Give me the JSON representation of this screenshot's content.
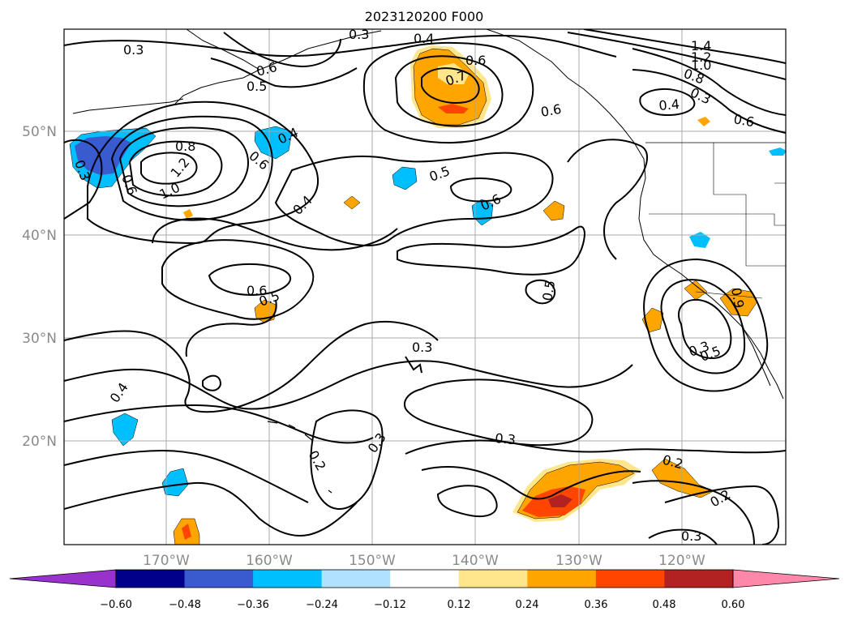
{
  "title": "2023120200 F000",
  "map": {
    "lat_labels": [
      "50°N",
      "40°N",
      "30°N",
      "20°N"
    ],
    "lon_labels": [
      "170°W",
      "160°W",
      "150°W",
      "140°W",
      "130°W",
      "120°W"
    ],
    "extent": {
      "lon_min": -179,
      "lon_max": -109,
      "lat_min": 10,
      "lat_max": 59
    }
  },
  "contour_labels": [
    "0.3",
    "0.3",
    "0.4",
    "0.6",
    "0.7",
    "1.4",
    "1.2",
    "1.0",
    "0.8",
    "0.3",
    "0.6",
    "0.5",
    "0.6",
    "0.4",
    "0.6",
    "0.3",
    "0.8",
    "0.6",
    "1.2",
    "1.0",
    "0.4",
    "0.6",
    "0.5",
    "0.6",
    "0.4",
    "0.6",
    "0.5",
    "0.5",
    "0.3",
    "0.3",
    "0.3",
    "0.4",
    "0.2",
    "0.3",
    "0.2",
    "0.2",
    "0.3",
    "0.5",
    "0.9"
  ],
  "colorbar": {
    "ticks": [
      "−0.60",
      "−0.48",
      "−0.36",
      "−0.24",
      "−0.12",
      "0.12",
      "0.24",
      "0.36",
      "0.48",
      "0.60"
    ],
    "colors": [
      "#9932cc",
      "#00008b",
      "#3a5bd0",
      "#00bfff",
      "#b0e2ff",
      "#ffffff",
      "#ffe68c",
      "#ffa500",
      "#ff4500",
      "#b22222",
      "#ff88aa"
    ]
  },
  "shading_colors": {
    "neg_light": "#b0e2ff",
    "neg_mid": "#00bfff",
    "neg_deep": "#3a5bd0",
    "pos_light": "#ffe68c",
    "pos_mid": "#ffa500",
    "pos_deep": "#ff4500",
    "pos_max": "#b22222"
  }
}
